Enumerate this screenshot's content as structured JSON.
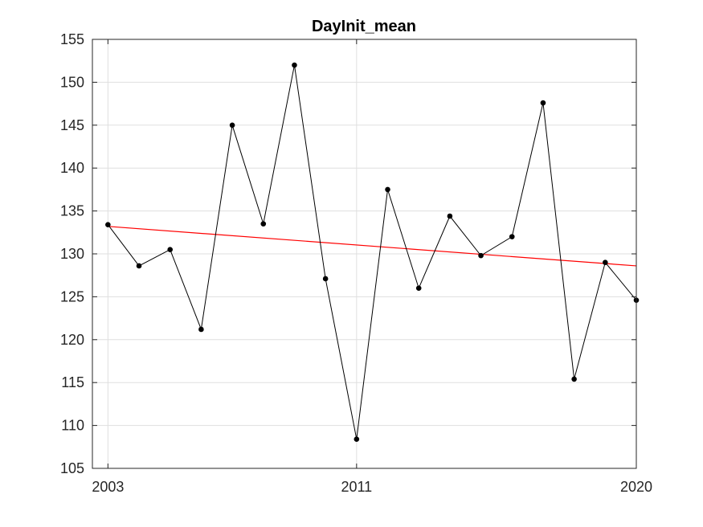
{
  "chart_data": {
    "type": "line",
    "title": "DayInit_mean",
    "xlabel": "",
    "ylabel": "",
    "xlim": [
      2002.5,
      2020
    ],
    "ylim": [
      105,
      155
    ],
    "x_ticks": [
      2003,
      2011,
      2020
    ],
    "x_tick_labels": [
      "2003",
      "2011",
      "2020"
    ],
    "y_ticks": [
      105,
      110,
      115,
      120,
      125,
      130,
      135,
      140,
      145,
      150,
      155
    ],
    "y_tick_labels": [
      "105",
      "110",
      "115",
      "120",
      "125",
      "130",
      "135",
      "140",
      "145",
      "150",
      "155"
    ],
    "grid": true,
    "series": [
      {
        "x": [
          2003,
          2004,
          2005,
          2006,
          2007,
          2008,
          2009,
          2010,
          2011,
          2012,
          2013,
          2014,
          2015,
          2016,
          2017,
          2018,
          2019,
          2020
        ],
        "y": [
          133.4,
          128.6,
          130.5,
          121.2,
          145.0,
          133.5,
          152.0,
          127.1,
          108.4,
          137.5,
          126.0,
          134.4,
          129.8,
          132.0,
          147.6,
          115.4,
          129.0,
          124.6
        ],
        "color": "#000000",
        "marker": "dot"
      }
    ],
    "trend_line": {
      "x": [
        2003,
        2020
      ],
      "y": [
        133.2,
        128.6
      ],
      "color": "#ff0000"
    }
  }
}
